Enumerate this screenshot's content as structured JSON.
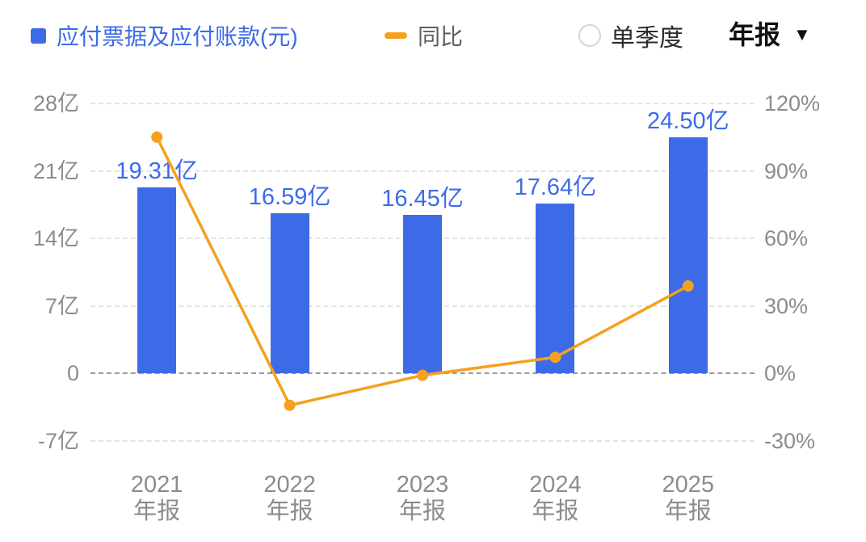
{
  "legend": {
    "bar_label": "应付票据及应付账款(元)",
    "line_label": "同比"
  },
  "controls": {
    "single_quarter_label": "单季度",
    "period_label": "年报",
    "dropdown_arrow": "▼"
  },
  "chart_data": {
    "type": "bar+line",
    "categories": [
      "2021",
      "2022",
      "2023",
      "2024",
      "2025"
    ],
    "category_suffix": "年报",
    "series": [
      {
        "name": "应付票据及应付账款(元)",
        "type": "bar",
        "axis": "left",
        "unit": "亿",
        "values": [
          19.31,
          16.59,
          16.45,
          17.64,
          24.5
        ],
        "labels": [
          "19.31亿",
          "16.59亿",
          "16.45亿",
          "17.64亿",
          "24.50亿"
        ]
      },
      {
        "name": "同比",
        "type": "line",
        "axis": "right",
        "unit": "%",
        "values": [
          105,
          -14.1,
          -0.8,
          7.2,
          38.9
        ]
      }
    ],
    "left_axis": {
      "ticks": [
        "28亿",
        "21亿",
        "14亿",
        "7亿",
        "0",
        "-7亿"
      ],
      "tick_values": [
        28,
        21,
        14,
        7,
        0,
        -7
      ],
      "min": -7,
      "max": 28
    },
    "right_axis": {
      "ticks": [
        "120%",
        "90%",
        "60%",
        "30%",
        "0%",
        "-30%"
      ],
      "tick_values": [
        120,
        90,
        60,
        30,
        0,
        -30
      ],
      "min": -30,
      "max": 120
    },
    "grid": "dashed-horizontal",
    "legend_position": "top",
    "colors": {
      "bar": "#3D6BE8",
      "line": "#F5A01E",
      "value_label": "#3D6BE8",
      "axis_text": "#8C8C8C",
      "grid_line": "#E4E4E4",
      "zero_line": "#9B9B9B"
    }
  }
}
